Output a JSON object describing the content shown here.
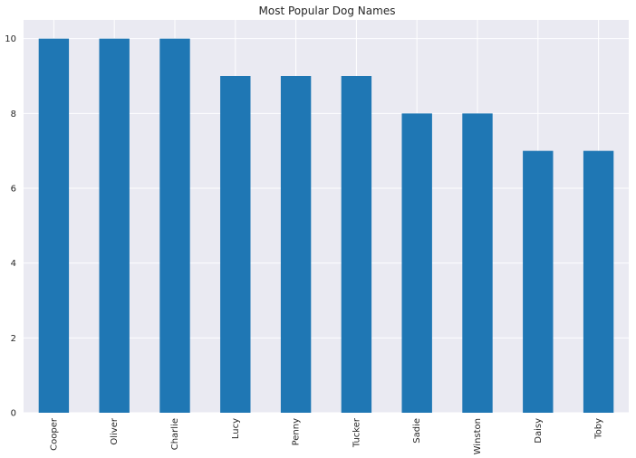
{
  "chart_data": {
    "type": "bar",
    "title": "Most Popular Dog Names",
    "xlabel": "",
    "ylabel": "",
    "categories": [
      "Cooper",
      "Oliver",
      "Charlie",
      "Lucy",
      "Penny",
      "Tucker",
      "Sadie",
      "Winston",
      "Daisy",
      "Toby"
    ],
    "values": [
      10,
      10,
      10,
      9,
      9,
      9,
      8,
      8,
      7,
      7
    ],
    "ylim": [
      0,
      10.5
    ],
    "yticks": [
      0,
      2,
      4,
      6,
      8,
      10
    ],
    "grid": true,
    "legend": "none",
    "colors": {
      "bar": "#1f77b4",
      "plot_background": "#eaeaf2",
      "grid": "#ffffff",
      "text": "#262626"
    }
  }
}
